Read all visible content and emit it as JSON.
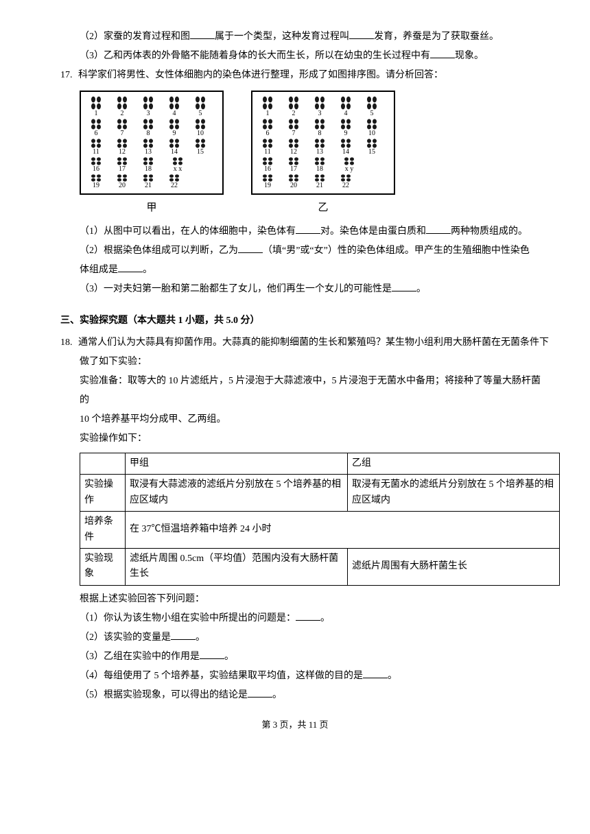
{
  "q16": {
    "p2": {
      "pre": "（2）家蚕的发育过程和图",
      "mid1": "属于一个类型，这种发育过程叫",
      "mid2": "发育，养蚕是为了获取蚕丝。"
    },
    "p3": {
      "pre": "（3）乙和丙体表的外骨骼不能随着身体的长大而生长，所以在幼虫的生长过程中有",
      "post": "现象。"
    }
  },
  "q17": {
    "stem_num": "17.",
    "stem": "科学家们将男性、女性体细胞内的染色体进行整理，形成了如图排序图。请分析回答：",
    "karyo_a_label": "甲",
    "karyo_b_label": "乙",
    "karyo_a_last": "x x",
    "karyo_b_last": "x y",
    "nums_row1": [
      "1",
      "2",
      "3",
      "4",
      "5"
    ],
    "nums_row2": [
      "6",
      "7",
      "8",
      "9",
      "10"
    ],
    "nums_row3": [
      "11",
      "12",
      "13",
      "14",
      "15"
    ],
    "nums_row4_a": [
      "16",
      "17",
      "18",
      ""
    ],
    "nums_row4_b": [
      "16",
      "17",
      "18",
      ""
    ],
    "nums_row5_a": [
      "19",
      "20",
      "21",
      "22"
    ],
    "nums_row5_b": [
      "19",
      "20",
      "21",
      "22"
    ],
    "p1": {
      "t1": "（1）从图中可以看出，在人的体细胞中，染色体有",
      "t2": "对。染色体是由蛋白质和",
      "t3": "两种物质组成的。"
    },
    "p2": {
      "t1": "（2）根据染色体组成可以判断，乙为",
      "t2": "（填“男”或“女”）性的染色体组成。甲产生的生殖细胞中性染色",
      "t3": "体组成是",
      "t4": "。"
    },
    "p3": {
      "t1": "（3）一对夫妇第一胎和第二胎都生了女儿，他们再生一个女儿的可能性是",
      "t2": "。"
    }
  },
  "section3": "三、实验探究题（本大题共 1 小题，共 5.0 分）",
  "q18": {
    "num": "18.",
    "stem1": "通常人们认为大蒜具有抑菌作用。大蒜真的能抑制细菌的生长和繁殖吗？某生物小组利用大肠杆菌在无菌条件下",
    "stem2": "做了如下实验：",
    "prep1": "实验准备：取等大的 10 片滤纸片，5 片浸泡于大蒜滤液中，5 片浸泡于无菌水中备用；将接种了等量大肠杆菌的",
    "prep2": "10 个培养基平均分成甲、乙两组。",
    "op_label": "实验操作如下：",
    "table": {
      "h_jia": "甲组",
      "h_yi": "乙组",
      "row_op_label": "实验操作",
      "row_op_jia": "取浸有大蒜滤液的滤纸片分别放在 5 个培养基的相应区域内",
      "row_op_yi": "取浸有无菌水的滤纸片分别放在 5 个培养基的相应区域内",
      "row_cond_label": "培养条件",
      "row_cond_val": "在 37℃恒温培养箱中培养 24 小时",
      "row_res_label": "实验现象",
      "row_res_jia": "滤纸片周围 0.5cm（平均值）范围内没有大肠杆菌生长",
      "row_res_yi": "滤纸片周围有大肠杆菌生长"
    },
    "after": "根据上述实验回答下列问题：",
    "p1": {
      "t1": "（1）你认为该生物小组在实验中所提出的问题是：",
      "t2": "。"
    },
    "p2": {
      "t1": "（2）该实验的变量是",
      "t2": "。"
    },
    "p3": {
      "t1": "（3）乙组在实验中的作用是",
      "t2": "。"
    },
    "p4": {
      "t1": "（4）每组使用了 5 个培养基，实验结果取平均值，这样做的目的是",
      "t2": "。"
    },
    "p5": {
      "t1": "（5）根据实验现象，可以得出的结论是",
      "t2": "。"
    }
  },
  "footer": "第 3 页，共 11 页",
  "style": {
    "chrom_color": "#1a1a1a",
    "border_color": "#000000",
    "blank_width_short": 42,
    "blank_width_med": 50
  }
}
